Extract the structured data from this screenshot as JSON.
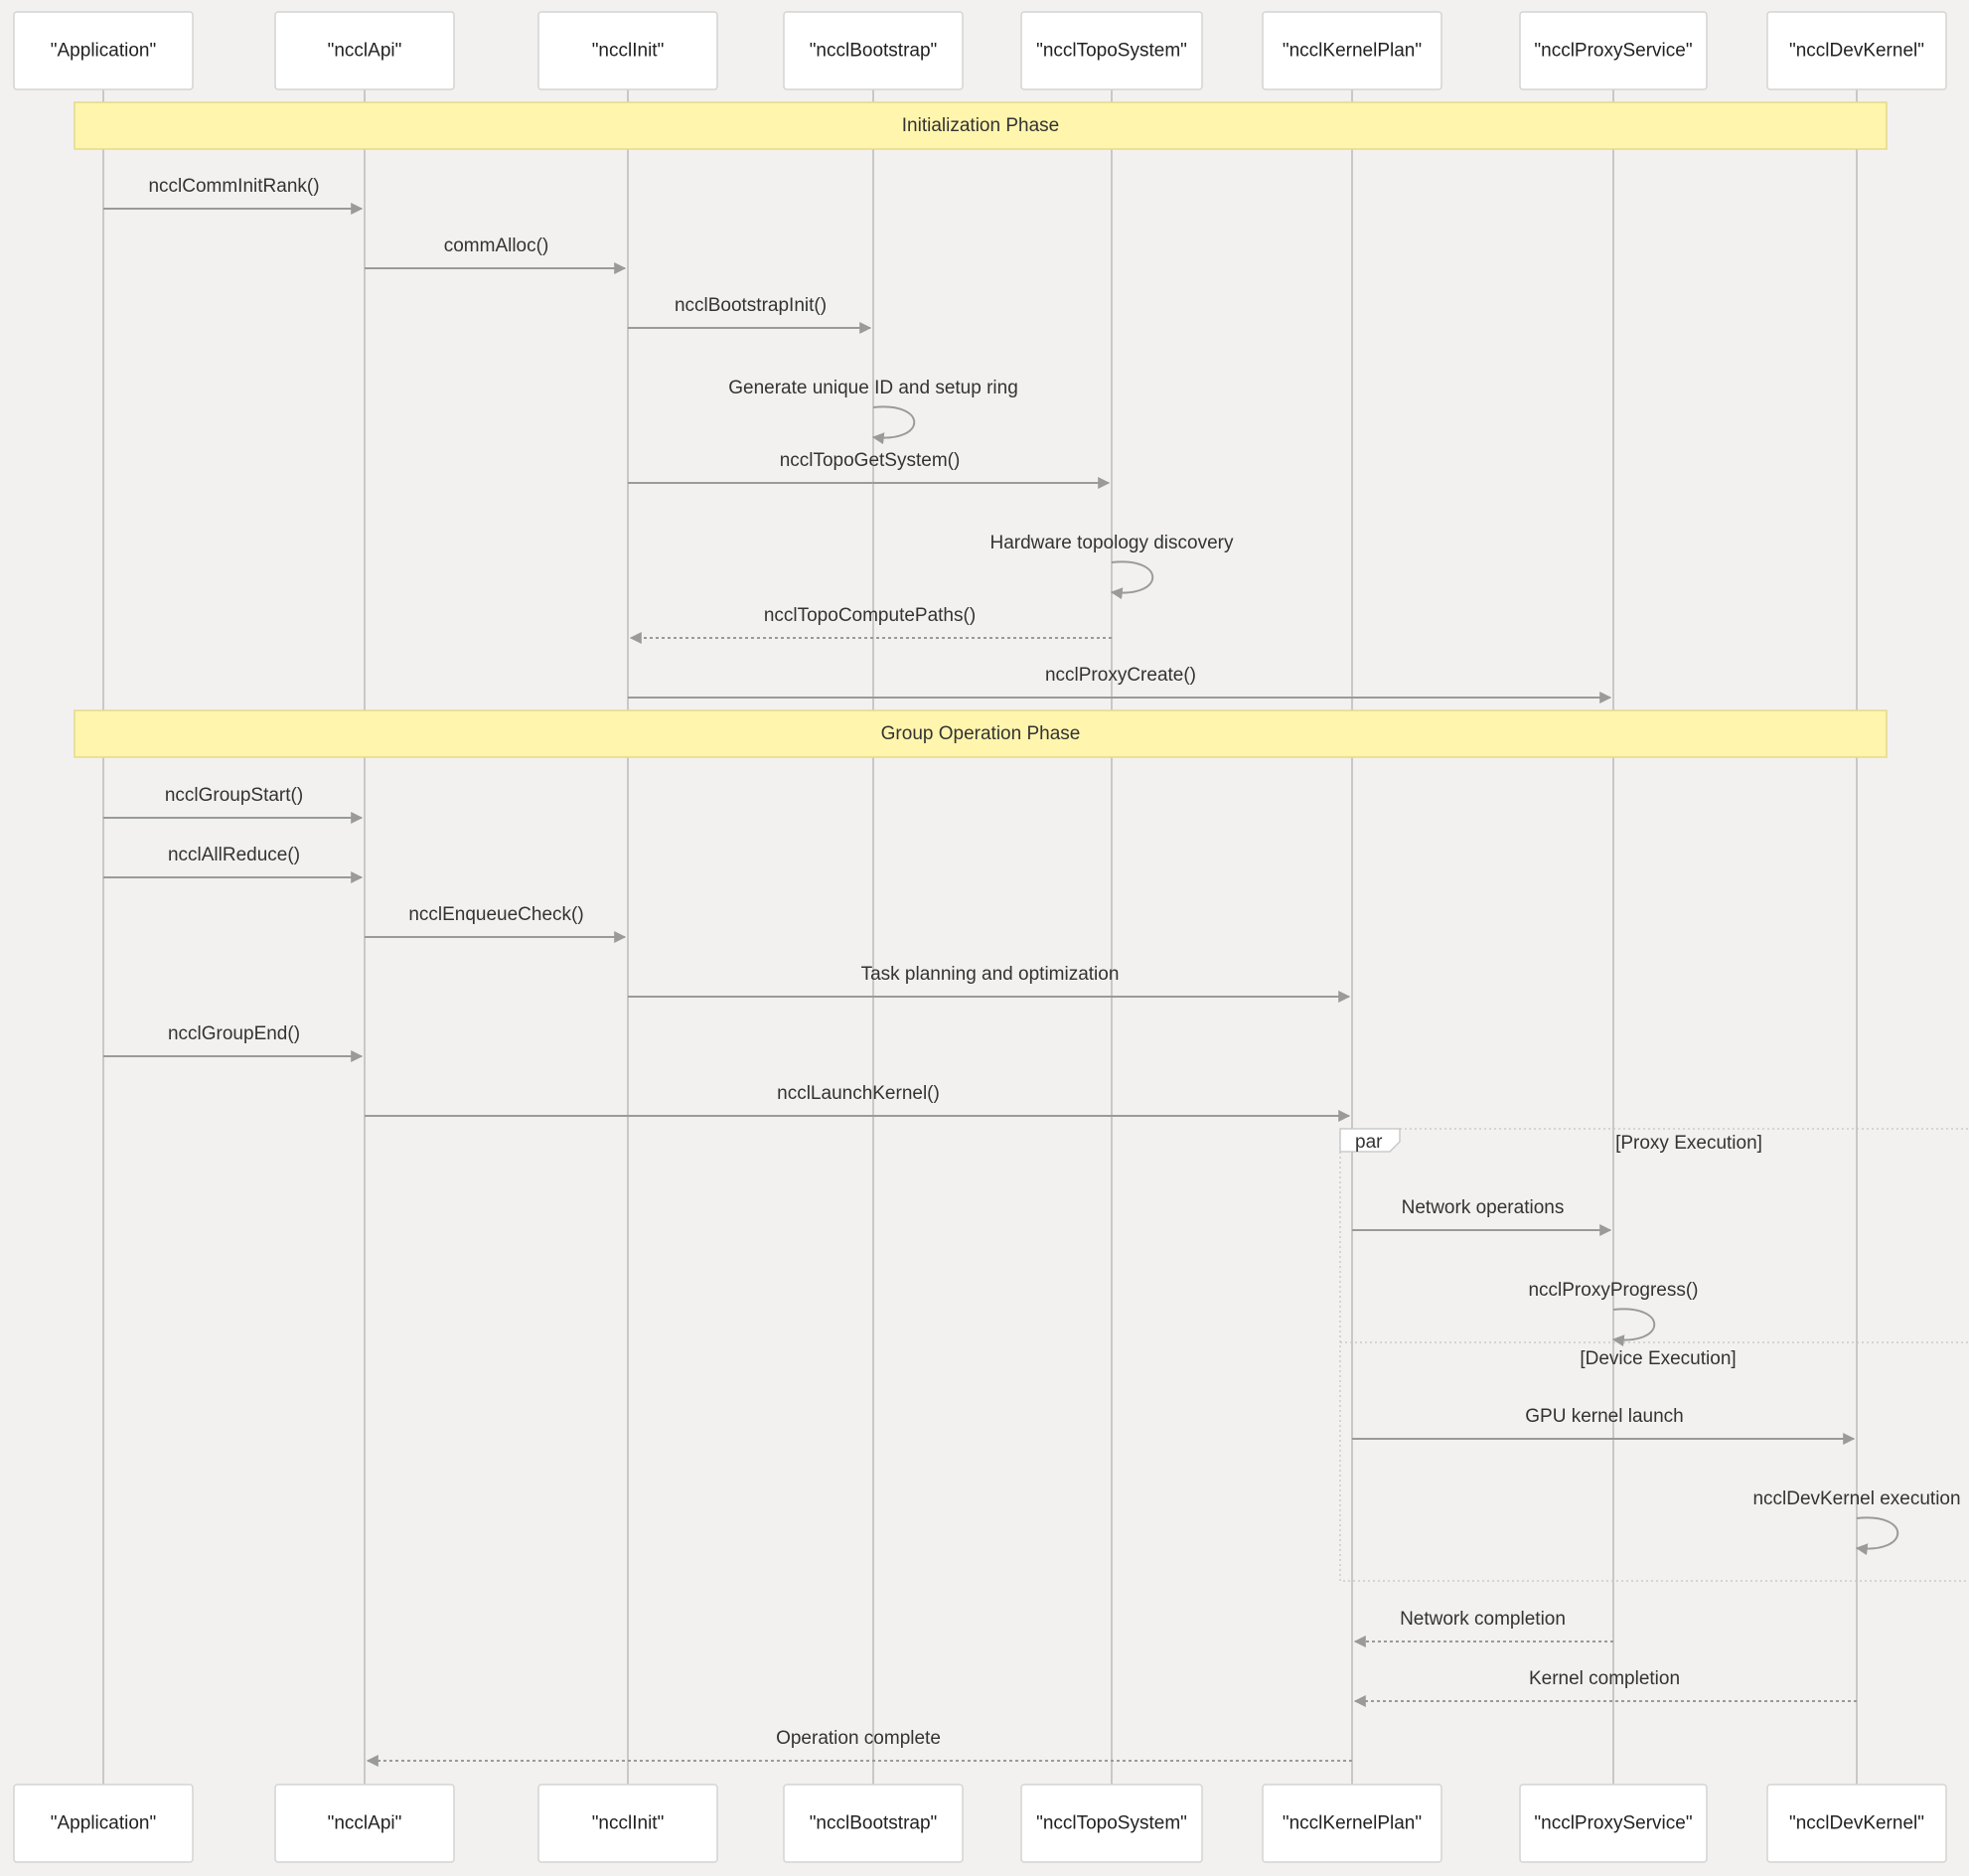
{
  "diagram": {
    "colors": {
      "background": "#f2f1ef",
      "note_fill": "#fff5ad",
      "line": "#9a9a9a"
    },
    "participants": [
      "\"Application\"",
      "\"ncclApi\"",
      "\"ncclInit\"",
      "\"ncclBootstrap\"",
      "\"ncclTopoSystem\"",
      "\"ncclKernelPlan\"",
      "\"ncclProxyService\"",
      "\"ncclDevKernel\""
    ],
    "notes": [
      {
        "label": "Initialization Phase"
      },
      {
        "label": "Group Operation Phase"
      }
    ],
    "messages": [
      {
        "from": 0,
        "to": 1,
        "label": "ncclCommInitRank()",
        "style": "solid"
      },
      {
        "from": 1,
        "to": 2,
        "label": "commAlloc()",
        "style": "solid"
      },
      {
        "from": 2,
        "to": 3,
        "label": "ncclBootstrapInit()",
        "style": "solid"
      },
      {
        "from": 3,
        "to": 3,
        "label": "Generate unique ID and setup ring",
        "style": "solid"
      },
      {
        "from": 2,
        "to": 4,
        "label": "ncclTopoGetSystem()",
        "style": "solid"
      },
      {
        "from": 4,
        "to": 4,
        "label": "Hardware topology discovery",
        "style": "solid"
      },
      {
        "from": 4,
        "to": 2,
        "label": "ncclTopoComputePaths()",
        "style": "dashed"
      },
      {
        "from": 2,
        "to": 6,
        "label": "ncclProxyCreate()",
        "style": "solid"
      },
      {
        "from": 0,
        "to": 1,
        "label": "ncclGroupStart()",
        "style": "solid"
      },
      {
        "from": 0,
        "to": 1,
        "label": "ncclAllReduce()",
        "style": "solid"
      },
      {
        "from": 1,
        "to": 2,
        "label": "ncclEnqueueCheck()",
        "style": "solid"
      },
      {
        "from": 2,
        "to": 5,
        "label": "Task planning and optimization",
        "style": "solid"
      },
      {
        "from": 0,
        "to": 1,
        "label": "ncclGroupEnd()",
        "style": "solid"
      },
      {
        "from": 1,
        "to": 5,
        "label": "ncclLaunchKernel()",
        "style": "solid"
      },
      {
        "from": 5,
        "to": 6,
        "label": "Network operations",
        "style": "solid"
      },
      {
        "from": 6,
        "to": 6,
        "label": "ncclProxyProgress()",
        "style": "solid"
      },
      {
        "from": 5,
        "to": 7,
        "label": "GPU kernel launch",
        "style": "solid"
      },
      {
        "from": 7,
        "to": 7,
        "label": "ncclDevKernel execution",
        "style": "solid"
      },
      {
        "from": 6,
        "to": 5,
        "label": "Network completion",
        "style": "dashed"
      },
      {
        "from": 7,
        "to": 5,
        "label": "Kernel completion",
        "style": "dashed"
      },
      {
        "from": 5,
        "to": 1,
        "label": "Operation complete",
        "style": "dashed"
      }
    ],
    "par_frame": {
      "tag": "par",
      "sections": [
        "[Proxy Execution]",
        "[Device Execution]"
      ]
    }
  }
}
